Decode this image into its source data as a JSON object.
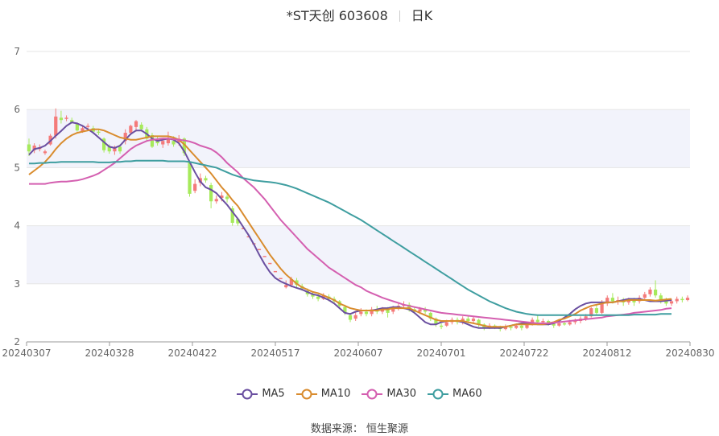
{
  "title": {
    "name": "*ST天创 603608",
    "period": "日K"
  },
  "source": "数据来源： 恒生聚源",
  "colors": {
    "up": "#f47a7a",
    "down": "#a6ea5b",
    "ma5": "#6a4fa0",
    "ma10": "#d98c2e",
    "ma30": "#d45fb0",
    "ma60": "#3f9ea0",
    "band": "#f2f3fb",
    "grid": "#e6e6e6",
    "axis": "#666666"
  },
  "chart_data": {
    "type": "candlestick",
    "y_axis": {
      "min": 2,
      "max": 7,
      "ticks": [
        2,
        3,
        4,
        5,
        6,
        7
      ]
    },
    "x_ticks": [
      "20240307",
      "20240328",
      "20240422",
      "20240517",
      "20240607",
      "20240701",
      "20240722",
      "20240812",
      "20240830"
    ],
    "ohlc": [
      [
        5.4,
        5.28,
        5.5,
        5.2
      ],
      [
        5.3,
        5.38,
        5.42,
        5.25
      ],
      [
        5.32,
        5.35,
        5.4,
        5.28
      ],
      [
        5.25,
        5.28,
        5.31,
        5.22
      ],
      [
        5.4,
        5.55,
        5.58,
        5.38
      ],
      [
        5.55,
        5.88,
        6.02,
        5.5
      ],
      [
        5.86,
        5.82,
        5.98,
        5.76
      ],
      [
        5.86,
        5.86,
        5.9,
        5.8
      ],
      [
        5.82,
        5.78,
        5.86,
        5.76
      ],
      [
        5.76,
        5.64,
        5.78,
        5.62
      ],
      [
        5.62,
        5.68,
        5.72,
        5.6
      ],
      [
        5.7,
        5.72,
        5.76,
        5.66
      ],
      [
        5.68,
        5.62,
        5.72,
        5.58
      ],
      [
        5.62,
        5.6,
        5.66,
        5.56
      ],
      [
        5.5,
        5.3,
        5.52,
        5.26
      ],
      [
        5.36,
        5.28,
        5.4,
        5.24
      ],
      [
        5.28,
        5.34,
        5.38,
        5.22
      ],
      [
        5.36,
        5.28,
        5.4,
        5.24
      ],
      [
        5.46,
        5.6,
        5.66,
        5.4
      ],
      [
        5.6,
        5.72,
        5.74,
        5.56
      ],
      [
        5.7,
        5.8,
        5.82,
        5.62
      ],
      [
        5.74,
        5.66,
        5.78,
        5.62
      ],
      [
        5.66,
        5.5,
        5.7,
        5.46
      ],
      [
        5.56,
        5.36,
        5.6,
        5.34
      ],
      [
        5.48,
        5.42,
        5.54,
        5.38
      ],
      [
        5.4,
        5.46,
        5.5,
        5.34
      ],
      [
        5.42,
        5.5,
        5.62,
        5.38
      ],
      [
        5.46,
        5.4,
        5.54,
        5.36
      ],
      [
        5.44,
        5.5,
        5.56,
        5.38
      ],
      [
        5.5,
        5.25,
        5.52,
        5.2
      ],
      [
        5.1,
        4.55,
        5.12,
        4.5
      ],
      [
        4.6,
        4.72,
        4.8,
        4.56
      ],
      [
        4.74,
        4.82,
        4.9,
        4.68
      ],
      [
        4.82,
        4.78,
        4.86,
        4.74
      ],
      [
        4.7,
        4.42,
        4.74,
        4.3
      ],
      [
        4.42,
        4.46,
        4.52,
        4.38
      ],
      [
        4.48,
        4.52,
        4.58,
        4.42
      ],
      [
        4.5,
        4.46,
        4.54,
        4.4
      ],
      [
        4.3,
        4.05,
        4.34,
        4.0
      ],
      [
        4.12,
        4.04,
        4.14,
        4.0
      ],
      [
        3.96,
        3.96,
        3.96,
        3.96
      ],
      [
        3.82,
        3.82,
        3.82,
        3.82
      ],
      [
        3.7,
        3.7,
        3.7,
        3.7
      ],
      [
        3.6,
        3.6,
        3.6,
        3.6
      ],
      [
        3.48,
        3.48,
        3.48,
        3.48
      ],
      [
        3.36,
        3.36,
        3.36,
        3.36
      ],
      [
        3.22,
        3.22,
        3.22,
        3.22
      ],
      [
        3.1,
        3.1,
        3.1,
        3.1
      ],
      [
        2.94,
        2.98,
        3.06,
        2.92
      ],
      [
        2.98,
        3.08,
        3.12,
        2.94
      ],
      [
        3.06,
        2.98,
        3.1,
        2.92
      ],
      [
        2.96,
        2.92,
        3.0,
        2.88
      ],
      [
        2.88,
        2.82,
        2.92,
        2.78
      ],
      [
        2.82,
        2.78,
        2.86,
        2.74
      ],
      [
        2.78,
        2.74,
        2.82,
        2.7
      ],
      [
        2.74,
        2.8,
        2.84,
        2.72
      ],
      [
        2.78,
        2.74,
        2.82,
        2.7
      ],
      [
        2.74,
        2.7,
        2.78,
        2.66
      ],
      [
        2.7,
        2.62,
        2.72,
        2.58
      ],
      [
        2.6,
        2.5,
        2.64,
        2.46
      ],
      [
        2.46,
        2.38,
        2.5,
        2.34
      ],
      [
        2.4,
        2.46,
        2.52,
        2.36
      ],
      [
        2.48,
        2.52,
        2.58,
        2.44
      ],
      [
        2.52,
        2.48,
        2.56,
        2.44
      ],
      [
        2.48,
        2.56,
        2.6,
        2.44
      ],
      [
        2.56,
        2.52,
        2.62,
        2.48
      ],
      [
        2.52,
        2.56,
        2.6,
        2.48
      ],
      [
        2.56,
        2.5,
        2.6,
        2.42
      ],
      [
        2.52,
        2.58,
        2.62,
        2.48
      ],
      [
        2.58,
        2.62,
        2.66,
        2.54
      ],
      [
        2.62,
        2.64,
        2.7,
        2.58
      ],
      [
        2.64,
        2.56,
        2.68,
        2.52
      ],
      [
        2.56,
        2.52,
        2.6,
        2.48
      ],
      [
        2.52,
        2.56,
        2.6,
        2.48
      ],
      [
        2.56,
        2.52,
        2.6,
        2.48
      ],
      [
        2.5,
        2.4,
        2.52,
        2.36
      ],
      [
        2.4,
        2.3,
        2.42,
        2.26
      ],
      [
        2.28,
        2.26,
        2.32,
        2.22
      ],
      [
        2.28,
        2.34,
        2.38,
        2.26
      ],
      [
        2.34,
        2.38,
        2.42,
        2.3
      ],
      [
        2.38,
        2.34,
        2.42,
        2.3
      ],
      [
        2.34,
        2.4,
        2.44,
        2.3
      ],
      [
        2.4,
        2.36,
        2.44,
        2.32
      ],
      [
        2.36,
        2.4,
        2.44,
        2.32
      ],
      [
        2.38,
        2.3,
        2.4,
        2.26
      ],
      [
        2.3,
        2.24,
        2.32,
        2.2
      ],
      [
        2.24,
        2.28,
        2.32,
        2.22
      ],
      [
        2.28,
        2.26,
        2.3,
        2.22
      ],
      [
        2.26,
        2.22,
        2.28,
        2.18
      ],
      [
        2.22,
        2.26,
        2.3,
        2.2
      ],
      [
        2.26,
        2.24,
        2.28,
        2.2
      ],
      [
        2.24,
        2.28,
        2.32,
        2.22
      ],
      [
        2.28,
        2.24,
        2.3,
        2.2
      ],
      [
        2.24,
        2.3,
        2.34,
        2.22
      ],
      [
        2.3,
        2.38,
        2.42,
        2.28
      ],
      [
        2.38,
        2.34,
        2.46,
        2.3
      ],
      [
        2.34,
        2.36,
        2.4,
        2.3
      ],
      [
        2.36,
        2.32,
        2.38,
        2.28
      ],
      [
        2.32,
        2.28,
        2.34,
        2.24
      ],
      [
        2.28,
        2.32,
        2.36,
        2.26
      ],
      [
        2.32,
        2.3,
        2.36,
        2.28
      ],
      [
        2.3,
        2.34,
        2.38,
        2.28
      ],
      [
        2.34,
        2.36,
        2.4,
        2.3
      ],
      [
        2.36,
        2.4,
        2.44,
        2.32
      ],
      [
        2.4,
        2.44,
        2.48,
        2.36
      ],
      [
        2.44,
        2.58,
        2.6,
        2.42
      ],
      [
        2.58,
        2.5,
        2.64,
        2.46
      ],
      [
        2.5,
        2.66,
        2.72,
        2.48
      ],
      [
        2.66,
        2.76,
        2.8,
        2.62
      ],
      [
        2.76,
        2.7,
        2.84,
        2.66
      ],
      [
        2.7,
        2.72,
        2.78,
        2.64
      ],
      [
        2.72,
        2.68,
        2.76,
        2.62
      ],
      [
        2.68,
        2.72,
        2.76,
        2.64
      ],
      [
        2.72,
        2.68,
        2.76,
        2.62
      ],
      [
        2.7,
        2.76,
        2.8,
        2.66
      ],
      [
        2.76,
        2.82,
        2.86,
        2.72
      ],
      [
        2.82,
        2.9,
        2.94,
        2.78
      ],
      [
        2.9,
        2.8,
        3.06,
        2.76
      ],
      [
        2.8,
        2.72,
        2.84,
        2.66
      ],
      [
        2.72,
        2.66,
        2.76,
        2.62
      ],
      [
        2.66,
        2.7,
        2.74,
        2.62
      ],
      [
        2.7,
        2.74,
        2.78,
        2.66
      ],
      [
        2.74,
        2.72,
        2.78,
        2.68
      ],
      [
        2.72,
        2.76,
        2.8,
        2.7
      ]
    ],
    "series": [
      {
        "name": "MA5",
        "key": "ma5",
        "values": [
          5.22,
          5.32,
          5.34,
          5.38,
          5.46,
          5.55,
          5.63,
          5.72,
          5.78,
          5.76,
          5.72,
          5.66,
          5.6,
          5.52,
          5.44,
          5.36,
          5.34,
          5.38,
          5.48,
          5.58,
          5.64,
          5.64,
          5.58,
          5.5,
          5.46,
          5.48,
          5.5,
          5.48,
          5.42,
          5.28,
          5.1,
          4.92,
          4.76,
          4.66,
          4.62,
          4.56,
          4.46,
          4.36,
          4.24,
          4.12,
          3.98,
          3.84,
          3.68,
          3.5,
          3.34,
          3.2,
          3.1,
          3.04,
          3.0,
          2.96,
          2.93,
          2.9,
          2.86,
          2.82,
          2.8,
          2.76,
          2.72,
          2.66,
          2.58,
          2.5,
          2.48,
          2.52,
          2.54,
          2.54,
          2.54,
          2.56,
          2.58,
          2.58,
          2.6,
          2.6,
          2.58,
          2.56,
          2.5,
          2.42,
          2.34,
          2.3,
          2.3,
          2.34,
          2.36,
          2.36,
          2.36,
          2.34,
          2.3,
          2.26,
          2.24,
          2.24,
          2.24,
          2.24,
          2.24,
          2.26,
          2.28,
          2.3,
          2.32,
          2.32,
          2.32,
          2.3,
          2.3,
          2.3,
          2.32,
          2.36,
          2.42,
          2.48,
          2.56,
          2.62,
          2.66,
          2.68,
          2.68,
          2.68,
          2.68,
          2.68,
          2.7,
          2.72,
          2.74,
          2.74,
          2.74,
          2.72,
          2.7,
          2.7,
          2.7,
          2.71,
          2.72
        ]
      },
      {
        "name": "MA10",
        "key": "ma10",
        "values": [
          4.88,
          4.95,
          5.02,
          5.1,
          5.2,
          5.32,
          5.42,
          5.5,
          5.56,
          5.6,
          5.62,
          5.64,
          5.66,
          5.66,
          5.64,
          5.6,
          5.56,
          5.52,
          5.5,
          5.48,
          5.48,
          5.5,
          5.52,
          5.54,
          5.54,
          5.54,
          5.54,
          5.52,
          5.48,
          5.4,
          5.3,
          5.2,
          5.1,
          5.0,
          4.9,
          4.78,
          4.66,
          4.56,
          4.44,
          4.34,
          4.2,
          4.06,
          3.92,
          3.78,
          3.64,
          3.5,
          3.38,
          3.26,
          3.16,
          3.08,
          3.0,
          2.94,
          2.9,
          2.86,
          2.84,
          2.8,
          2.76,
          2.72,
          2.66,
          2.62,
          2.58,
          2.56,
          2.54,
          2.54,
          2.54,
          2.54,
          2.56,
          2.56,
          2.58,
          2.58,
          2.58,
          2.58,
          2.54,
          2.5,
          2.46,
          2.42,
          2.38,
          2.36,
          2.36,
          2.36,
          2.36,
          2.36,
          2.34,
          2.32,
          2.3,
          2.28,
          2.26,
          2.26,
          2.26,
          2.26,
          2.28,
          2.3,
          2.3,
          2.3,
          2.3,
          2.3,
          2.3,
          2.32,
          2.34,
          2.38,
          2.4,
          2.44,
          2.48,
          2.54,
          2.58,
          2.62,
          2.64,
          2.66,
          2.68,
          2.68,
          2.7,
          2.7,
          2.72,
          2.72,
          2.72,
          2.72,
          2.72,
          2.71,
          2.72,
          2.73,
          2.74
        ]
      },
      {
        "name": "MA30",
        "key": "ma30",
        "values": [
          4.72,
          4.72,
          4.72,
          4.72,
          4.74,
          4.75,
          4.76,
          4.76,
          4.77,
          4.78,
          4.8,
          4.83,
          4.86,
          4.9,
          4.96,
          5.02,
          5.08,
          5.16,
          5.24,
          5.32,
          5.38,
          5.42,
          5.46,
          5.48,
          5.49,
          5.5,
          5.5,
          5.49,
          5.48,
          5.47,
          5.45,
          5.42,
          5.38,
          5.35,
          5.32,
          5.26,
          5.18,
          5.08,
          5.0,
          4.92,
          4.82,
          4.74,
          4.66,
          4.56,
          4.46,
          4.34,
          4.22,
          4.1,
          4.0,
          3.9,
          3.8,
          3.7,
          3.6,
          3.52,
          3.44,
          3.36,
          3.28,
          3.22,
          3.16,
          3.1,
          3.04,
          2.98,
          2.94,
          2.88,
          2.84,
          2.8,
          2.76,
          2.73,
          2.7,
          2.67,
          2.64,
          2.62,
          2.6,
          2.58,
          2.56,
          2.54,
          2.52,
          2.5,
          2.49,
          2.48,
          2.47,
          2.46,
          2.45,
          2.44,
          2.43,
          2.42,
          2.41,
          2.4,
          2.39,
          2.38,
          2.37,
          2.36,
          2.35,
          2.34,
          2.33,
          2.32,
          2.32,
          2.32,
          2.33,
          2.34,
          2.35,
          2.36,
          2.37,
          2.38,
          2.39,
          2.4,
          2.41,
          2.42,
          2.44,
          2.45,
          2.46,
          2.47,
          2.48,
          2.5,
          2.51,
          2.52,
          2.53,
          2.54,
          2.55,
          2.57,
          2.58
        ]
      },
      {
        "name": "MA60",
        "key": "ma60",
        "values": [
          5.07,
          5.07,
          5.08,
          5.08,
          5.09,
          5.09,
          5.1,
          5.1,
          5.1,
          5.1,
          5.1,
          5.1,
          5.1,
          5.09,
          5.09,
          5.09,
          5.1,
          5.1,
          5.11,
          5.11,
          5.12,
          5.12,
          5.12,
          5.12,
          5.12,
          5.12,
          5.11,
          5.11,
          5.11,
          5.11,
          5.1,
          5.08,
          5.06,
          5.04,
          5.02,
          5.0,
          4.96,
          4.92,
          4.88,
          4.85,
          4.82,
          4.8,
          4.78,
          4.77,
          4.76,
          4.75,
          4.74,
          4.72,
          4.7,
          4.67,
          4.64,
          4.6,
          4.56,
          4.52,
          4.48,
          4.44,
          4.4,
          4.35,
          4.3,
          4.25,
          4.2,
          4.15,
          4.1,
          4.04,
          3.98,
          3.92,
          3.86,
          3.8,
          3.74,
          3.68,
          3.62,
          3.56,
          3.5,
          3.44,
          3.38,
          3.32,
          3.26,
          3.2,
          3.14,
          3.08,
          3.02,
          2.96,
          2.9,
          2.85,
          2.8,
          2.75,
          2.7,
          2.66,
          2.62,
          2.58,
          2.55,
          2.52,
          2.5,
          2.48,
          2.47,
          2.46,
          2.46,
          2.46,
          2.46,
          2.46,
          2.46,
          2.46,
          2.46,
          2.46,
          2.46,
          2.46,
          2.46,
          2.46,
          2.46,
          2.46,
          2.46,
          2.46,
          2.46,
          2.47,
          2.47,
          2.47,
          2.47,
          2.47,
          2.48,
          2.48,
          2.48
        ]
      }
    ]
  }
}
